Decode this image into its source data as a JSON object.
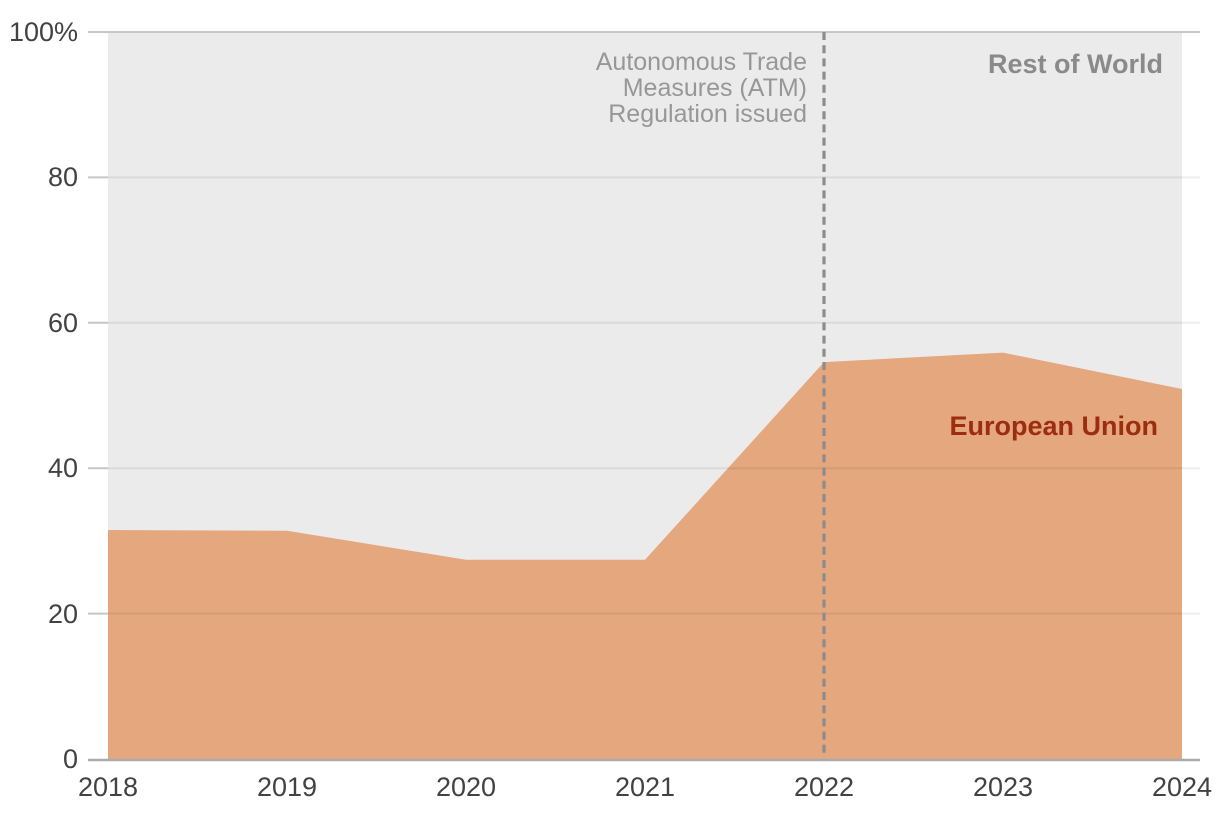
{
  "chart_data": {
    "type": "area",
    "stacked": true,
    "unit": "percent",
    "x": [
      2018,
      2019,
      2020,
      2021,
      2022,
      2023,
      2024
    ],
    "x_tick_labels": [
      "2018",
      "2019",
      "2020",
      "2021",
      "2022",
      "2023",
      "2024"
    ],
    "ylim": [
      0,
      100
    ],
    "y_ticks": [
      {
        "value": 0,
        "label": "0"
      },
      {
        "value": 20,
        "label": "20"
      },
      {
        "value": 40,
        "label": "40"
      },
      {
        "value": 60,
        "label": "60"
      },
      {
        "value": 80,
        "label": "80"
      },
      {
        "value": 100,
        "label": "100%"
      }
    ],
    "grid": true,
    "legend_position": "inline-labels",
    "series": [
      {
        "name": "European Union",
        "values": [
          31.5,
          31.4,
          27.4,
          27.4,
          54.6,
          55.9,
          50.9
        ],
        "color": "#e5a77d",
        "label_color": "#9c2d0e"
      },
      {
        "name": "Rest of World",
        "values": [
          68.5,
          68.6,
          72.6,
          72.6,
          45.4,
          44.1,
          49.1
        ],
        "color": "#ebebeb",
        "label_color": "#8a8a8a"
      }
    ],
    "series_labels": {
      "european_union": "European Union",
      "rest_of_world": "Rest of World"
    },
    "annotation": {
      "text": "Autonomous Trade\nMeasures (ATM)\nRegulation issued",
      "x": 2022,
      "color": "#979797"
    },
    "reference_line": {
      "x": 2022,
      "style": "dashed",
      "color": "#8c8c8c"
    },
    "colors": {
      "eu_fill": "#e5a77d",
      "row_fill": "#ebebeb",
      "eu_label": "#9c2d0e",
      "row_label": "#8a8a8a",
      "annotation_text": "#979797",
      "dashed_line": "#8c8c8c",
      "axis_line": "#ababab",
      "tick_mark": "#c6c6c6",
      "gridline_overlay": "rgba(0,0,0,0.07)",
      "axis_text": "#424242",
      "background": "#ffffff"
    }
  }
}
